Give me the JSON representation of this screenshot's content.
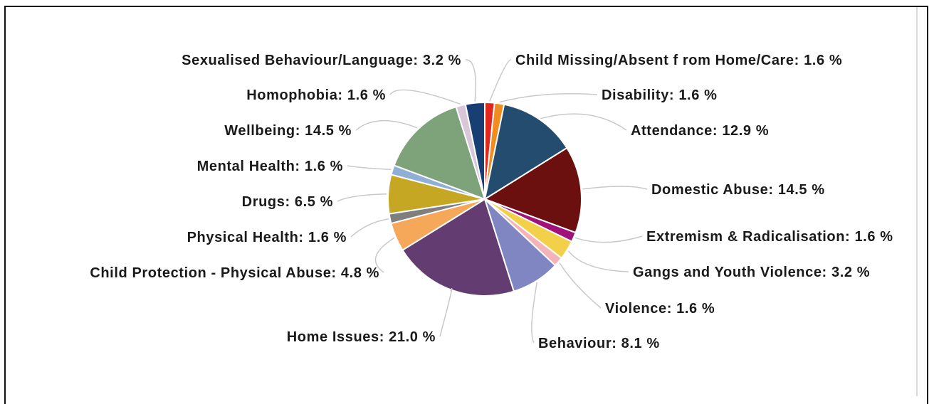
{
  "chart_data": {
    "type": "pie",
    "title": "",
    "slices": [
      {
        "label": "Child Missing/Absent from Home/Care",
        "value": 1.6,
        "display": "Child Missing/Absent f rom Home/Care: 1.6 %",
        "color": "#e0281f"
      },
      {
        "label": "Disability",
        "value": 1.6,
        "display": "Disability: 1.6 %",
        "color": "#f28c1f"
      },
      {
        "label": "Attendance",
        "value": 12.9,
        "display": "Attendance: 12.9 %",
        "color": "#234c6e"
      },
      {
        "label": "Domestic Abuse",
        "value": 14.5,
        "display": "Domestic Abuse: 14.5 %",
        "color": "#6c0f0f"
      },
      {
        "label": "Extremism & Radicalisation",
        "value": 1.6,
        "display": "Extremism & Radicalisation: 1.6 %",
        "color": "#a0127a"
      },
      {
        "label": "Gangs and Youth Violence",
        "value": 3.2,
        "display": "Gangs and Youth Violence: 3.2 %",
        "color": "#f2d04a"
      },
      {
        "label": "Violence",
        "value": 1.6,
        "display": "Violence: 1.6 %",
        "color": "#f4b3b8"
      },
      {
        "label": "Behaviour",
        "value": 8.1,
        "display": "Behaviour: 8.1 %",
        "color": "#7f86c1"
      },
      {
        "label": "Home Issues",
        "value": 21.0,
        "display": "Home Issues: 21.0 %",
        "color": "#633c72"
      },
      {
        "label": "Child Protection - Physical Abuse",
        "value": 4.8,
        "display": "Child Protection - Physical Abuse: 4.8 %",
        "color": "#f5a85a"
      },
      {
        "label": "Physical Health",
        "value": 1.6,
        "display": "Physical Health: 1.6 %",
        "color": "#7f7f7f"
      },
      {
        "label": "Drugs",
        "value": 6.5,
        "display": "Drugs: 6.5 %",
        "color": "#c5a723"
      },
      {
        "label": "Mental Health",
        "value": 1.6,
        "display": "Mental Health: 1.6 %",
        "color": "#8fb0d4"
      },
      {
        "label": "Wellbeing",
        "value": 14.5,
        "display": "Wellbeing: 14.5 %",
        "color": "#7ea37a"
      },
      {
        "label": "Homophobia",
        "value": 1.6,
        "display": "Homophobia: 1.6 %",
        "color": "#d7c7d9"
      },
      {
        "label": "Sexualised Behaviour/Language",
        "value": 3.2,
        "display": "Sexualised Behaviour/Language: 3.2 %",
        "color": "#173f73"
      }
    ]
  }
}
